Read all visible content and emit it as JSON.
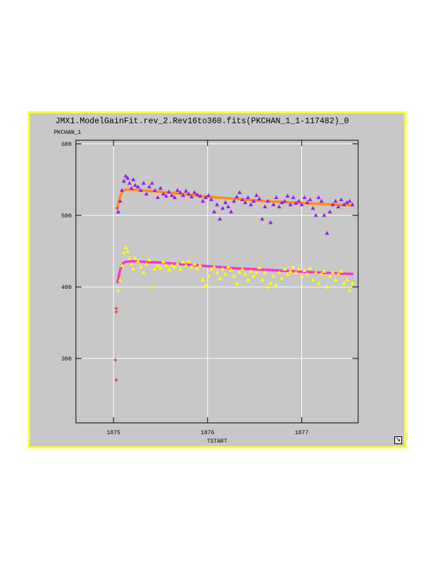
{
  "window": {
    "border_color": "#ffff33",
    "background": "#c8c8c8",
    "resize_icon": "resize-diagonal-icon"
  },
  "chart_data": {
    "type": "scatter",
    "title": "JMX1.ModelGainFit.rev_2.Rev16to360.fits(PKCHAN_1_1-117482)_0",
    "xlabel": "TSTART",
    "ylabel": "PKCHAN_1",
    "xlim": [
      1874.6,
      1877.6
    ],
    "ylim": [
      210,
      605
    ],
    "x_ticks": [
      1875,
      1876,
      1877
    ],
    "x_tick_labels": [
      "1875",
      "1876",
      "1877"
    ],
    "y_ticks": [
      300,
      400,
      500,
      600
    ],
    "y_tick_labels": [
      "300",
      "400",
      "500",
      "600"
    ],
    "grid": true,
    "series": [
      {
        "marker": "triangle",
        "color": "#9a1ee6",
        "values": [
          [
            1875.05,
            505
          ],
          [
            1875.07,
            520
          ],
          [
            1875.09,
            535
          ],
          [
            1875.11,
            548
          ],
          [
            1875.13,
            555
          ],
          [
            1875.15,
            552
          ],
          [
            1875.17,
            545
          ],
          [
            1875.19,
            538
          ],
          [
            1875.21,
            550
          ],
          [
            1875.23,
            542
          ],
          [
            1875.26,
            540
          ],
          [
            1875.29,
            535
          ],
          [
            1875.32,
            545
          ],
          [
            1875.35,
            530
          ],
          [
            1875.38,
            540
          ],
          [
            1875.41,
            545
          ],
          [
            1875.44,
            535
          ],
          [
            1875.47,
            525
          ],
          [
            1875.5,
            538
          ],
          [
            1875.53,
            530
          ],
          [
            1875.56,
            527
          ],
          [
            1875.59,
            533
          ],
          [
            1875.62,
            528
          ],
          [
            1875.65,
            525
          ],
          [
            1875.68,
            535
          ],
          [
            1875.71,
            532
          ],
          [
            1875.74,
            528
          ],
          [
            1875.77,
            534
          ],
          [
            1875.8,
            530
          ],
          [
            1875.83,
            526
          ],
          [
            1875.86,
            532
          ],
          [
            1875.89,
            529
          ],
          [
            1875.92,
            527
          ],
          [
            1875.95,
            520
          ],
          [
            1875.98,
            525
          ],
          [
            1876.01,
            528
          ],
          [
            1876.04,
            522
          ],
          [
            1876.07,
            505
          ],
          [
            1876.1,
            515
          ],
          [
            1876.13,
            495
          ],
          [
            1876.16,
            510
          ],
          [
            1876.19,
            518
          ],
          [
            1876.22,
            512
          ],
          [
            1876.25,
            505
          ],
          [
            1876.28,
            520
          ],
          [
            1876.31,
            526
          ],
          [
            1876.34,
            532
          ],
          [
            1876.37,
            522
          ],
          [
            1876.4,
            518
          ],
          [
            1876.43,
            525
          ],
          [
            1876.46,
            515
          ],
          [
            1876.49,
            520
          ],
          [
            1876.52,
            528
          ],
          [
            1876.55,
            523
          ],
          [
            1876.58,
            495
          ],
          [
            1876.61,
            512
          ],
          [
            1876.64,
            520
          ],
          [
            1876.67,
            490
          ],
          [
            1876.7,
            515
          ],
          [
            1876.73,
            525
          ],
          [
            1876.76,
            512
          ],
          [
            1876.79,
            518
          ],
          [
            1876.82,
            520
          ],
          [
            1876.85,
            527
          ],
          [
            1876.88,
            515
          ],
          [
            1876.91,
            525
          ],
          [
            1876.94,
            517
          ],
          [
            1876.97,
            520
          ],
          [
            1877.0,
            515
          ],
          [
            1877.03,
            525
          ],
          [
            1877.06,
            518
          ],
          [
            1877.09,
            522
          ],
          [
            1877.12,
            510
          ],
          [
            1877.15,
            500
          ],
          [
            1877.18,
            525
          ],
          [
            1877.21,
            520
          ],
          [
            1877.24,
            500
          ],
          [
            1877.27,
            475
          ],
          [
            1877.3,
            505
          ],
          [
            1877.33,
            515
          ],
          [
            1877.36,
            520
          ],
          [
            1877.39,
            512
          ],
          [
            1877.42,
            522
          ],
          [
            1877.45,
            515
          ],
          [
            1877.48,
            518
          ],
          [
            1877.51,
            520
          ],
          [
            1877.54,
            515
          ]
        ]
      },
      {
        "marker": "triangle",
        "color": "#ffff00",
        "values": [
          [
            1875.05,
            395
          ],
          [
            1875.07,
            410
          ],
          [
            1875.09,
            430
          ],
          [
            1875.11,
            448
          ],
          [
            1875.13,
            455
          ],
          [
            1875.15,
            450
          ],
          [
            1875.17,
            440
          ],
          [
            1875.19,
            432
          ],
          [
            1875.21,
            425
          ],
          [
            1875.23,
            440
          ],
          [
            1875.26,
            436
          ],
          [
            1875.29,
            428
          ],
          [
            1875.32,
            420
          ],
          [
            1875.35,
            432
          ],
          [
            1875.38,
            438
          ],
          [
            1875.41,
            400
          ],
          [
            1875.44,
            425
          ],
          [
            1875.47,
            430
          ],
          [
            1875.5,
            427
          ],
          [
            1875.53,
            435
          ],
          [
            1875.56,
            430
          ],
          [
            1875.59,
            424
          ],
          [
            1875.62,
            430
          ],
          [
            1875.65,
            428
          ],
          [
            1875.68,
            432
          ],
          [
            1875.71,
            425
          ],
          [
            1875.74,
            435
          ],
          [
            1875.77,
            430
          ],
          [
            1875.8,
            436
          ],
          [
            1875.83,
            428
          ],
          [
            1875.86,
            432
          ],
          [
            1875.89,
            426
          ],
          [
            1875.92,
            430
          ],
          [
            1875.95,
            410
          ],
          [
            1875.98,
            402
          ],
          [
            1876.01,
            415
          ],
          [
            1876.04,
            425
          ],
          [
            1876.07,
            428
          ],
          [
            1876.1,
            420
          ],
          [
            1876.13,
            412
          ],
          [
            1876.16,
            425
          ],
          [
            1876.19,
            418
          ],
          [
            1876.22,
            428
          ],
          [
            1876.25,
            424
          ],
          [
            1876.28,
            415
          ],
          [
            1876.31,
            405
          ],
          [
            1876.34,
            420
          ],
          [
            1876.37,
            425
          ],
          [
            1876.4,
            418
          ],
          [
            1876.43,
            410
          ],
          [
            1876.46,
            422
          ],
          [
            1876.49,
            415
          ],
          [
            1876.52,
            420
          ],
          [
            1876.55,
            427
          ],
          [
            1876.58,
            410
          ],
          [
            1876.61,
            420
          ],
          [
            1876.64,
            400
          ],
          [
            1876.67,
            405
          ],
          [
            1876.7,
            415
          ],
          [
            1876.73,
            403
          ],
          [
            1876.76,
            420
          ],
          [
            1876.79,
            412
          ],
          [
            1876.82,
            425
          ],
          [
            1876.85,
            418
          ],
          [
            1876.88,
            422
          ],
          [
            1876.91,
            428
          ],
          [
            1876.94,
            420
          ],
          [
            1876.97,
            425
          ],
          [
            1877.0,
            415
          ],
          [
            1877.03,
            423
          ],
          [
            1877.06,
            418
          ],
          [
            1877.09,
            426
          ],
          [
            1877.12,
            410
          ],
          [
            1877.15,
            420
          ],
          [
            1877.18,
            405
          ],
          [
            1877.21,
            418
          ],
          [
            1877.24,
            422
          ],
          [
            1877.27,
            400
          ],
          [
            1877.3,
            415
          ],
          [
            1877.33,
            420
          ],
          [
            1877.36,
            410
          ],
          [
            1877.39,
            418
          ],
          [
            1877.42,
            422
          ],
          [
            1877.45,
            405
          ],
          [
            1877.48,
            410
          ],
          [
            1877.51,
            395
          ],
          [
            1877.54,
            405
          ]
        ]
      },
      {
        "marker": "plus",
        "color": "#cc2020",
        "values": [
          [
            1875.02,
            298
          ],
          [
            1875.03,
            270
          ],
          [
            1875.03,
            370
          ],
          [
            1875.03,
            365
          ],
          [
            1875.04,
            510
          ]
        ]
      }
    ],
    "fits": [
      {
        "color": "#ff8c1a",
        "values": [
          [
            1875.04,
            510
          ],
          [
            1875.06,
            522
          ],
          [
            1875.08,
            530
          ],
          [
            1875.1,
            534
          ],
          [
            1875.13,
            536
          ],
          [
            1875.2,
            536
          ],
          [
            1875.5,
            533
          ],
          [
            1875.8,
            529
          ],
          [
            1876.0,
            526
          ],
          [
            1876.3,
            523
          ],
          [
            1876.6,
            520
          ],
          [
            1876.9,
            518
          ],
          [
            1877.2,
            516
          ],
          [
            1877.55,
            514
          ]
        ]
      },
      {
        "color": "#ff33cc",
        "values": [
          [
            1875.04,
            405
          ],
          [
            1875.06,
            418
          ],
          [
            1875.08,
            428
          ],
          [
            1875.1,
            433
          ],
          [
            1875.13,
            435
          ],
          [
            1875.2,
            436
          ],
          [
            1875.5,
            434
          ],
          [
            1875.8,
            431
          ],
          [
            1876.0,
            429
          ],
          [
            1876.3,
            426
          ],
          [
            1876.6,
            424
          ],
          [
            1876.9,
            422
          ],
          [
            1877.2,
            420
          ],
          [
            1877.55,
            418
          ]
        ]
      }
    ]
  }
}
